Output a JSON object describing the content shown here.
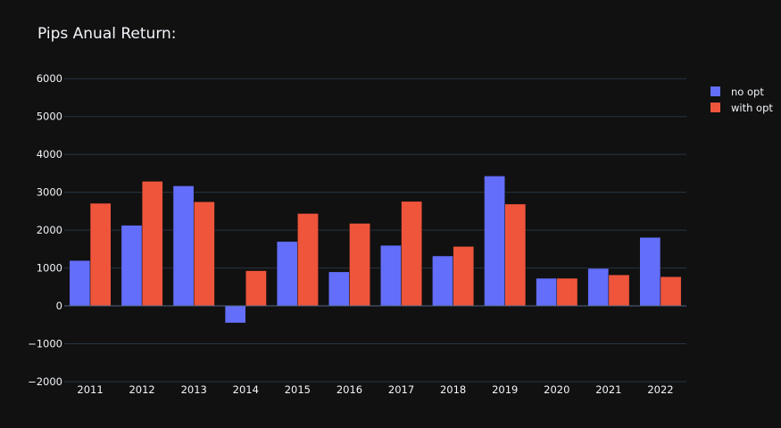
{
  "chart_data": {
    "type": "bar",
    "title": "Pips Anual Return:",
    "xlabel": "",
    "ylabel": "",
    "categories": [
      "2011",
      "2012",
      "2013",
      "2014",
      "2015",
      "2016",
      "2017",
      "2018",
      "2019",
      "2020",
      "2021",
      "2022"
    ],
    "series": [
      {
        "name": "no opt",
        "color": "#636efa",
        "values": [
          1200,
          2130,
          3170,
          -450,
          1700,
          900,
          1600,
          1320,
          3430,
          730,
          990,
          1810
        ]
      },
      {
        "name": "with opt",
        "color": "#ef553b",
        "values": [
          2710,
          3290,
          2750,
          930,
          2440,
          2180,
          2760,
          1570,
          2690,
          730,
          820,
          770
        ]
      }
    ],
    "ylim": [
      -2000,
      6500
    ],
    "yticks": [
      -2000,
      -1000,
      0,
      1000,
      2000,
      3000,
      4000,
      5000,
      6000
    ],
    "ytick_labels": [
      "−2000",
      "−1000",
      "0",
      "1000",
      "2000",
      "3000",
      "4000",
      "5000",
      "6000"
    ],
    "grid": true,
    "legend_position": "top-right",
    "background_color": "#111111",
    "grid_color": "#283442",
    "text_color": "#f2f5fa"
  }
}
